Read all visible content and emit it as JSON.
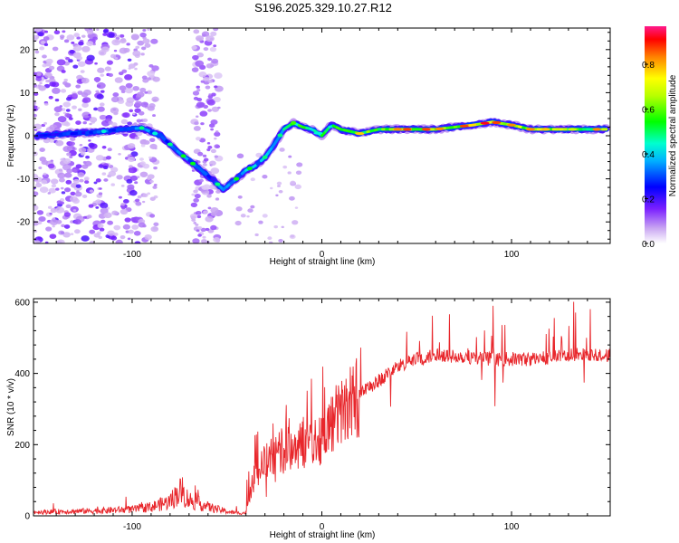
{
  "chart_data": [
    {
      "type": "heatmap",
      "title": "S196.2025.329.10.27.R12",
      "xlabel": "Height of straight line (km)",
      "ylabel": "Frequency (Hz)",
      "xlim": [
        -152,
        152
      ],
      "ylim": [
        -25,
        25
      ],
      "xticks": [
        -100,
        0,
        100
      ],
      "xtick_labels": [
        "-100",
        "0",
        "100"
      ],
      "yticks": [
        -20,
        -10,
        0,
        10,
        20
      ],
      "ytick_labels": [
        "-20",
        "-10",
        "0",
        "10",
        "20"
      ],
      "ridge": {
        "x": [
          -150,
          -140,
          -120,
          -105,
          -95,
          -85,
          -75,
          -65,
          -58,
          -52,
          -45,
          -40,
          -35,
          -30,
          -25,
          -20,
          -15,
          -10,
          -5,
          0,
          5,
          10,
          20,
          30,
          40,
          60,
          80,
          90,
          100,
          110,
          120,
          130,
          140,
          150
        ],
        "y": [
          0,
          0.3,
          0.8,
          1.5,
          1.8,
          0,
          -4,
          -7.5,
          -10,
          -12.5,
          -10,
          -8,
          -7,
          -5,
          -2,
          1.5,
          3,
          2,
          1.5,
          0,
          2.5,
          1.5,
          0.5,
          1.5,
          1.5,
          1.5,
          2.5,
          3.2,
          2.5,
          1.5,
          1.5,
          1.5,
          1.5,
          1.5
        ],
        "amplitude": [
          0.3,
          0.35,
          0.4,
          0.45,
          0.45,
          0.4,
          0.5,
          0.4,
          0.35,
          0.45,
          0.45,
          0.5,
          0.5,
          0.5,
          0.5,
          0.6,
          0.65,
          0.7,
          0.7,
          0.75,
          0.7,
          0.7,
          0.75,
          0.8,
          0.85,
          0.9,
          0.95,
          0.95,
          0.9,
          0.85,
          0.85,
          0.85,
          0.8,
          0.8
        ]
      }
    },
    {
      "type": "line",
      "xlabel": "Height of straight line (km)",
      "ylabel": "SNR (10 * v/v)",
      "xlim": [
        -152,
        152
      ],
      "ylim": [
        0,
        610
      ],
      "xticks": [
        -100,
        0,
        100
      ],
      "xtick_labels": [
        "-100",
        "0",
        "100"
      ],
      "yticks": [
        0,
        200,
        400,
        600
      ],
      "ytick_labels": [
        "0",
        "200",
        "400",
        "600"
      ],
      "series": [
        {
          "name": "SNR",
          "color": "#e8262b",
          "x": [
            -152,
            -140,
            -120,
            -100,
            -90,
            -80,
            -75,
            -70,
            -60,
            -50,
            -45,
            -40,
            -38,
            -35,
            -30,
            -25,
            -20,
            -15,
            -10,
            -5,
            0,
            5,
            10,
            15,
            20,
            25,
            30,
            40,
            50,
            60,
            70,
            80,
            90,
            100,
            110,
            120,
            130,
            140,
            150,
            152
          ],
          "y": [
            10,
            12,
            14,
            18,
            25,
            40,
            70,
            45,
            25,
            12,
            8,
            8,
            60,
            120,
            150,
            170,
            180,
            195,
            200,
            210,
            220,
            260,
            290,
            320,
            340,
            360,
            380,
            420,
            440,
            450,
            450,
            445,
            440,
            440,
            440,
            445,
            450,
            455,
            450,
            450
          ]
        }
      ],
      "legend": "none"
    }
  ],
  "colorbar": {
    "label": "Normalized spectral amplitude",
    "ticks": [
      0,
      0.2,
      0.4,
      0.6,
      0.8
    ],
    "tick_labels": [
      "0.0",
      "0.2",
      "0.4",
      "0.6",
      "0.8"
    ],
    "range": [
      0,
      0.97
    ],
    "colors": [
      "#ffffff",
      "#8a00ff",
      "#0000ff",
      "#00ffff",
      "#00ff00",
      "#ffff00",
      "#ff0000",
      "#ff0080"
    ]
  }
}
